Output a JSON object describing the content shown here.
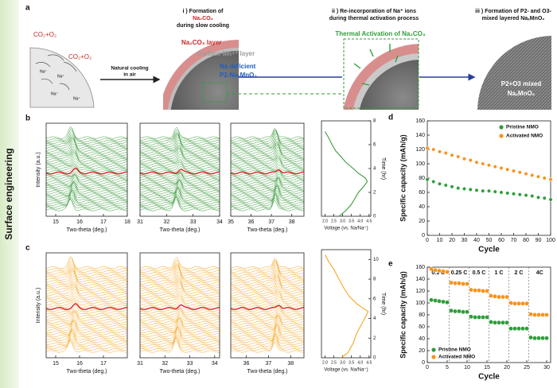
{
  "side_label": "Surface engineering",
  "panel_a": {
    "label": "a",
    "co2_1": "CO₂+O₂",
    "co2_2": "CO₂+O₂",
    "na_ions": [
      "Na⁺",
      "Na⁺",
      "Na⁺",
      "Na⁺"
    ],
    "arrow_1": "Natural cooling",
    "arrow_2": "in air",
    "step1": [
      "i ) Formation of",
      "Na₂CO₃",
      "during slow cooling"
    ],
    "layer_1": "Na₂CO₃ layer",
    "layer_2": "Surface Mn⁴⁺ layer",
    "layer_3": "Na deficient",
    "layer_4": "P2-NaₓMnO₂",
    "step2": [
      "ii ) Re-incorporation of Na⁺ ions",
      "during thermal activation process"
    ],
    "activation": "Thermal Activation of Na₂CO₃",
    "step3": [
      "iii ) Formation of P2- and O3-",
      "mixed layered NaₓMnO₂"
    ],
    "product": [
      "P2+O3 mixed",
      "NaₓMnO₂"
    ]
  },
  "xrd_panels": [
    {
      "label": "b",
      "y_label": "Intensity (a.u.)",
      "color": "#3c9a3c",
      "highlight_color": "#d62020",
      "plots": [
        {
          "x_label": "Two-theta (deg.)",
          "xlim": [
            14.6,
            18
          ],
          "xticks": [
            15,
            16,
            17,
            18
          ]
        },
        {
          "x_label": "Two-theta (deg.)",
          "xlim": [
            31,
            34
          ],
          "xticks": [
            31,
            32,
            33,
            34
          ]
        },
        {
          "x_label": "Two-theta (deg.)",
          "xlim": [
            35,
            38.6
          ],
          "xticks": [
            35,
            36,
            37,
            38
          ]
        }
      ]
    },
    {
      "label": "c",
      "y_label": "Intensity (a.u.)",
      "color": "#f5a623",
      "highlight_color": "#d62020",
      "plots": [
        {
          "x_label": "Two-theta (deg.)",
          "xlim": [
            14.6,
            18
          ],
          "xticks": [
            15,
            16,
            17
          ]
        },
        {
          "x_label": "Two-theta (deg.)",
          "xlim": [
            31,
            34.2
          ],
          "xticks": [
            31,
            32,
            33,
            34
          ]
        },
        {
          "x_label": "Two-theta (deg.)",
          "xlim": [
            35.3,
            38.6
          ],
          "xticks": [
            36,
            37,
            38
          ]
        }
      ]
    }
  ],
  "chart_data": [
    {
      "type": "line",
      "x_label": "Voltage (vs. Na/Na⁺)",
      "y_label": "Time (hr)",
      "xlim": [
        1.8,
        4.6
      ],
      "xticks": [
        {
          "value": 2,
          "label": "2.0"
        },
        2.5,
        {
          "value": 3,
          "label": "3.0"
        },
        3.5,
        {
          "value": 4,
          "label": "4.0"
        },
        4.5
      ],
      "ylim": [
        0,
        8
      ],
      "yticks": [
        0,
        2,
        4,
        6,
        8
      ],
      "series": [
        {
          "color": "#3c9a3c",
          "x": [
            2.8,
            3.2,
            3.5,
            3.7,
            3.9,
            4.2,
            4.4,
            4.3,
            3.9,
            3.6,
            3.2,
            2.9,
            2.6,
            2.4,
            2.2,
            2.0
          ],
          "values": [
            0,
            0.5,
            1,
            1.5,
            2,
            2.5,
            2.9,
            3.2,
            3.6,
            4,
            4.5,
            5,
            5.5,
            6,
            6.6,
            7.1
          ]
        }
      ]
    },
    {
      "type": "line",
      "x_label": "Voltage (vs. Na/Na⁺)",
      "y_label": "Time (hr)",
      "xlim": [
        1.8,
        4.6
      ],
      "xticks": [
        {
          "value": 2,
          "label": "2.0"
        },
        2.5,
        {
          "value": 3,
          "label": "3.0"
        },
        3.5,
        {
          "value": 4,
          "label": "4.0"
        },
        4.5
      ],
      "ylim": [
        0,
        11
      ],
      "yticks": [
        0,
        2,
        4,
        6,
        8,
        10
      ],
      "series": [
        {
          "color": "#f5a623",
          "x": [
            2.9,
            3.3,
            3.6,
            3.8,
            4.1,
            4.3,
            4.45,
            4.2,
            3.8,
            3.4,
            3.1,
            2.8,
            2.5,
            2.2,
            2.0
          ],
          "values": [
            0,
            0.5,
            1.5,
            2.5,
            3.5,
            4.2,
            4.7,
            5.0,
            5.5,
            6.2,
            7,
            8,
            9,
            9.8,
            10.5
          ]
        }
      ]
    },
    {
      "type": "scatter",
      "label": "d",
      "x_label": "Cycle",
      "y_label": "Specific capacity (mAh/g)",
      "legend": "upper right",
      "xlim": [
        0,
        100
      ],
      "xticks": [
        0,
        10,
        20,
        30,
        40,
        50,
        60,
        70,
        80,
        90,
        100
      ],
      "ylim": [
        0,
        160
      ],
      "yticks": [
        0,
        20,
        40,
        60,
        80,
        100,
        120,
        140,
        160
      ],
      "x": [
        0,
        5,
        10,
        15,
        20,
        25,
        30,
        35,
        40,
        45,
        50,
        55,
        60,
        65,
        70,
        75,
        80,
        85,
        90,
        95,
        100
      ],
      "series": [
        {
          "name": "Pristine NMO",
          "color": "#2e9e3a",
          "values": [
            78,
            75,
            72,
            70,
            68,
            66,
            65,
            64,
            63,
            62,
            62,
            61,
            60,
            59,
            58,
            57,
            56,
            55,
            53,
            52,
            50
          ]
        },
        {
          "name": "Activated NMO",
          "color": "#f7931e",
          "values": [
            122,
            120,
            117,
            115,
            112,
            110,
            107,
            105,
            102,
            100,
            98,
            96,
            94,
            92,
            90,
            88,
            86,
            84,
            82,
            80,
            78
          ]
        }
      ]
    },
    {
      "type": "scatter",
      "label": "e",
      "x_label": "Cycle",
      "y_label": "Specific capacity (mAh/g)",
      "legend": "lower left",
      "xlim": [
        0,
        31
      ],
      "xticks": [
        0,
        5,
        10,
        15,
        20,
        25,
        30
      ],
      "ylim": [
        0,
        160
      ],
      "yticks": [
        0,
        20,
        40,
        60,
        80,
        100,
        120,
        140,
        160
      ],
      "section_bounds": [
        5.5,
        10.5,
        15.5,
        20.5,
        25.5
      ],
      "rate_labels": [
        "0.1 C",
        "0.25 C",
        "0.5 C",
        "1 C",
        "2 C",
        "4C"
      ],
      "x": [
        1,
        2,
        3,
        4,
        5,
        6,
        7,
        8,
        9,
        10,
        11,
        12,
        13,
        14,
        15,
        16,
        17,
        18,
        19,
        20,
        21,
        22,
        23,
        24,
        25,
        26,
        27,
        28,
        29,
        30
      ],
      "series": [
        {
          "name": "Pristine NMO",
          "color": "#2e9e3a",
          "values": [
            105,
            104,
            103,
            102,
            101,
            87,
            86,
            86,
            85,
            85,
            77,
            76,
            76,
            76,
            76,
            68,
            67,
            67,
            67,
            67,
            57,
            57,
            57,
            57,
            57,
            42,
            41,
            41,
            41,
            41
          ]
        },
        {
          "name": "Activated NMO",
          "color": "#f7931e",
          "values": [
            157,
            155,
            154,
            153,
            152,
            134,
            133,
            133,
            132,
            132,
            122,
            121,
            121,
            120,
            120,
            112,
            111,
            110,
            110,
            110,
            100,
            99,
            99,
            99,
            99,
            81,
            80,
            80,
            80,
            80
          ]
        }
      ]
    }
  ]
}
